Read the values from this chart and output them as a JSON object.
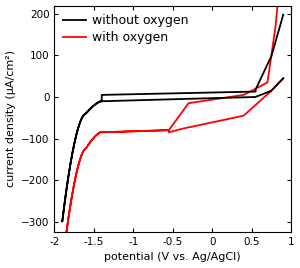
{
  "title": "",
  "xlabel": "potential (V vs. Ag/AgCl)",
  "ylabel": "current density (μA/cm²)",
  "xlim": [
    -2.0,
    1.0
  ],
  "ylim": [
    -325,
    220
  ],
  "yticks": [
    -300,
    -200,
    -100,
    0,
    100,
    200
  ],
  "xticks": [
    -2.0,
    -1.5,
    -1.0,
    -0.5,
    0.0,
    0.5,
    1.0
  ],
  "legend": [
    "without oxygen",
    "with oxygen"
  ],
  "line_colors": [
    "black",
    "red"
  ],
  "background_color": "#ffffff",
  "legend_fontsize": 9,
  "axis_fontsize": 8,
  "tick_fontsize": 7.5,
  "linewidth": 1.3
}
